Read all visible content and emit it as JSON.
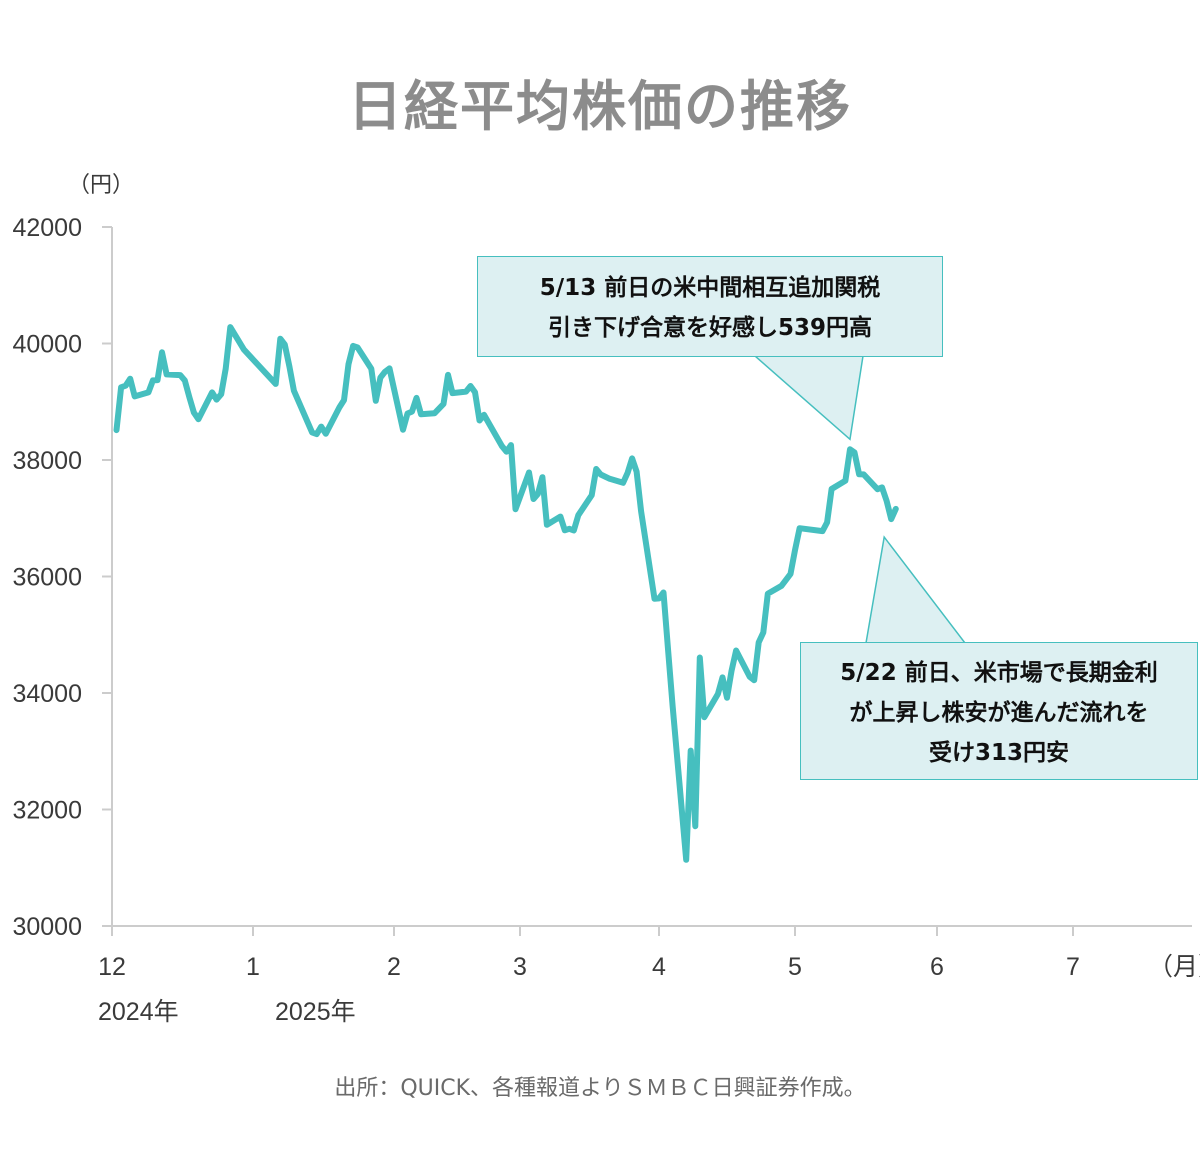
{
  "title": "日経平均株価の推移",
  "y_unit": "（円）",
  "x_unit": "（月）",
  "years": [
    "2024年",
    "2025年"
  ],
  "source": "出所：QUICK、各種報道よりＳＭＢＣ日興証券作成。",
  "callouts": [
    {
      "lines": [
        "5/13 前日の米中間相互追加関税",
        "引き下げ合意を好感し539円高"
      ]
    },
    {
      "lines": [
        "5/22 前日、米市場で長期金利",
        "が上昇し株安が進んだ流れを",
        "受け313円安"
      ]
    }
  ],
  "colors": {
    "line": "#46bfbf",
    "axis": "#cccccc",
    "callout_fill": "#ddf0f2"
  },
  "chart_data": {
    "type": "line",
    "title": "日経平均株価の推移",
    "ylabel": "（円）",
    "xlabel": "（月）",
    "ylim": [
      30000,
      42000
    ],
    "yticks": [
      30000,
      32000,
      34000,
      36000,
      38000,
      40000,
      42000
    ],
    "xticks": [
      "12",
      "1",
      "2",
      "3",
      "4",
      "5",
      "6",
      "7"
    ],
    "grid": false,
    "series": [
      {
        "points": [
          [
            "2024-12-02",
            38513
          ],
          [
            "2024-12-03",
            39248
          ],
          [
            "2024-12-04",
            39276
          ],
          [
            "2024-12-05",
            39395
          ],
          [
            "2024-12-06",
            39091
          ],
          [
            "2024-12-09",
            39160
          ],
          [
            "2024-12-10",
            39367
          ],
          [
            "2024-12-11",
            39372
          ],
          [
            "2024-12-12",
            39849
          ],
          [
            "2024-12-13",
            39470
          ],
          [
            "2024-12-16",
            39457
          ],
          [
            "2024-12-17",
            39365
          ],
          [
            "2024-12-18",
            39082
          ],
          [
            "2024-12-19",
            38814
          ],
          [
            "2024-12-20",
            38701
          ],
          [
            "2024-12-23",
            39161
          ],
          [
            "2024-12-24",
            39037
          ],
          [
            "2024-12-25",
            39130
          ],
          [
            "2024-12-26",
            39568
          ],
          [
            "2024-12-27",
            40281
          ],
          [
            "2024-12-30",
            39895
          ],
          [
            "2025-01-06",
            39307
          ],
          [
            "2025-01-07",
            40083
          ],
          [
            "2025-01-08",
            39981
          ],
          [
            "2025-01-09",
            39605
          ],
          [
            "2025-01-10",
            39190
          ],
          [
            "2025-01-14",
            38474
          ],
          [
            "2025-01-15",
            38445
          ],
          [
            "2025-01-16",
            38573
          ],
          [
            "2025-01-17",
            38451
          ],
          [
            "2025-01-20",
            38903
          ],
          [
            "2025-01-21",
            39028
          ],
          [
            "2025-01-22",
            39646
          ],
          [
            "2025-01-23",
            39959
          ],
          [
            "2025-01-24",
            39931
          ],
          [
            "2025-01-27",
            39566
          ],
          [
            "2025-01-28",
            39017
          ],
          [
            "2025-01-29",
            39415
          ],
          [
            "2025-01-30",
            39513
          ],
          [
            "2025-01-31",
            39572
          ],
          [
            "2025-02-03",
            38520
          ],
          [
            "2025-02-04",
            38798
          ],
          [
            "2025-02-05",
            38831
          ],
          [
            "2025-02-06",
            39066
          ],
          [
            "2025-02-07",
            38787
          ],
          [
            "2025-02-10",
            38801
          ],
          [
            "2025-02-12",
            38963
          ],
          [
            "2025-02-13",
            39461
          ],
          [
            "2025-02-14",
            39149
          ],
          [
            "2025-02-17",
            39174
          ],
          [
            "2025-02-18",
            39270
          ],
          [
            "2025-02-19",
            39164
          ],
          [
            "2025-02-20",
            38678
          ],
          [
            "2025-02-21",
            38776
          ],
          [
            "2025-02-25",
            38237
          ],
          [
            "2025-02-26",
            38142
          ],
          [
            "2025-02-27",
            38256
          ],
          [
            "2025-02-28",
            37155
          ],
          [
            "2025-03-03",
            37785
          ],
          [
            "2025-03-04",
            37331
          ],
          [
            "2025-03-05",
            37418
          ],
          [
            "2025-03-06",
            37704
          ],
          [
            "2025-03-07",
            36887
          ],
          [
            "2025-03-10",
            37028
          ],
          [
            "2025-03-11",
            36793
          ],
          [
            "2025-03-12",
            36819
          ],
          [
            "2025-03-13",
            36790
          ],
          [
            "2025-03-14",
            37053
          ],
          [
            "2025-03-17",
            37396
          ],
          [
            "2025-03-18",
            37845
          ],
          [
            "2025-03-19",
            37751
          ],
          [
            "2025-03-21",
            37677
          ],
          [
            "2025-03-24",
            37608
          ],
          [
            "2025-03-25",
            37780
          ],
          [
            "2025-03-26",
            38027
          ],
          [
            "2025-03-27",
            37800
          ],
          [
            "2025-03-28",
            37120
          ],
          [
            "2025-03-31",
            35617
          ],
          [
            "2025-04-01",
            35624
          ],
          [
            "2025-04-02",
            35725
          ],
          [
            "2025-04-03",
            34735
          ],
          [
            "2025-04-04",
            33780
          ],
          [
            "2025-04-07",
            31136
          ],
          [
            "2025-04-08",
            33012
          ],
          [
            "2025-04-09",
            31714
          ],
          [
            "2025-04-10",
            34609
          ],
          [
            "2025-04-11",
            33585
          ],
          [
            "2025-04-14",
            33982
          ],
          [
            "2025-04-15",
            34267
          ],
          [
            "2025-04-16",
            33920
          ],
          [
            "2025-04-17",
            34377
          ],
          [
            "2025-04-18",
            34730
          ],
          [
            "2025-04-21",
            34280
          ],
          [
            "2025-04-22",
            34220
          ],
          [
            "2025-04-23",
            34868
          ],
          [
            "2025-04-24",
            35039
          ],
          [
            "2025-04-25",
            35705
          ],
          [
            "2025-04-28",
            35839
          ],
          [
            "2025-04-30",
            36045
          ],
          [
            "2025-05-01",
            36452
          ],
          [
            "2025-05-02",
            36830
          ],
          [
            "2025-05-07",
            36779
          ],
          [
            "2025-05-08",
            36928
          ],
          [
            "2025-05-09",
            37503
          ],
          [
            "2025-05-12",
            37644
          ],
          [
            "2025-05-13",
            38183
          ],
          [
            "2025-05-14",
            38128
          ],
          [
            "2025-05-15",
            37755
          ],
          [
            "2025-05-16",
            37753
          ],
          [
            "2025-05-19",
            37498
          ],
          [
            "2025-05-20",
            37529
          ],
          [
            "2025-05-21",
            37299
          ],
          [
            "2025-05-22",
            36986
          ],
          [
            "2025-05-23",
            37160
          ]
        ]
      }
    ],
    "annotations": [
      {
        "date": "2025-05-13",
        "text": "5/13 前日の米中間相互追加関税引き下げ合意を好感し539円高"
      },
      {
        "date": "2025-05-22",
        "text": "5/22 前日、米市場で長期金利が上昇し株安が進んだ流れを受け313円安"
      }
    ]
  }
}
